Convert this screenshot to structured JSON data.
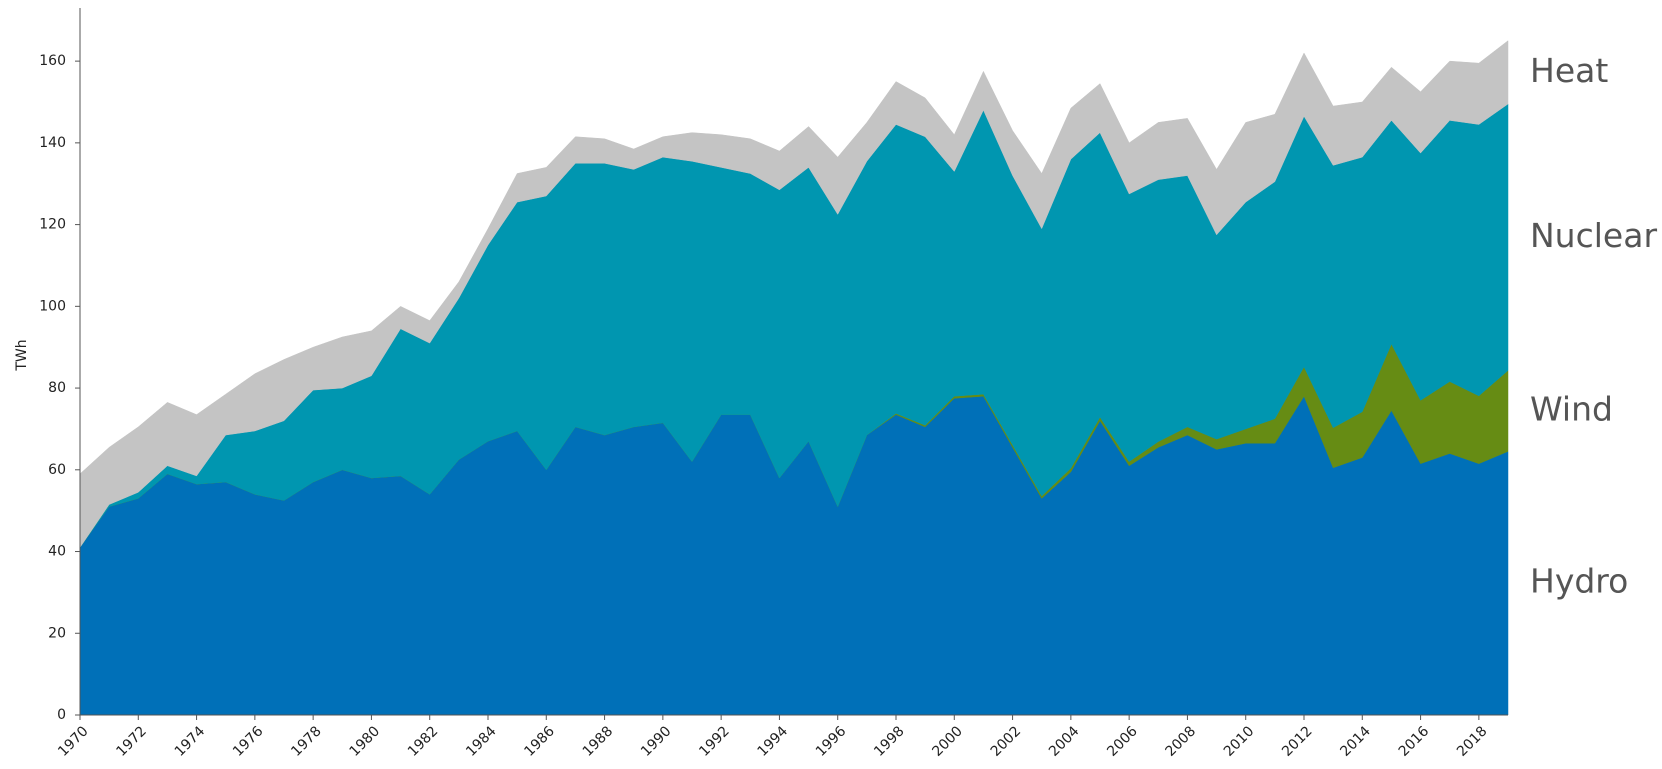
{
  "chart_data": {
    "type": "stacked-area",
    "y_label": "TWh",
    "x": [
      1970,
      1971,
      1972,
      1973,
      1974,
      1975,
      1976,
      1977,
      1978,
      1979,
      1980,
      1981,
      1982,
      1983,
      1984,
      1985,
      1986,
      1987,
      1988,
      1989,
      1990,
      1991,
      1992,
      1993,
      1994,
      1995,
      1996,
      1997,
      1998,
      1999,
      2000,
      2001,
      2002,
      2003,
      2004,
      2005,
      2006,
      2007,
      2008,
      2009,
      2010,
      2011,
      2012,
      2013,
      2014,
      2015,
      2016,
      2017,
      2018,
      2019
    ],
    "xlim": [
      1970,
      2019
    ],
    "xticks": [
      1970,
      1972,
      1974,
      1976,
      1978,
      1980,
      1982,
      1984,
      1986,
      1988,
      1990,
      1992,
      1994,
      1996,
      1998,
      2000,
      2002,
      2004,
      2006,
      2008,
      2010,
      2012,
      2014,
      2016,
      2018
    ],
    "ylim": [
      0,
      173
    ],
    "yticks": [
      0,
      20,
      40,
      60,
      80,
      100,
      120,
      140,
      160
    ],
    "grid": false,
    "series": [
      {
        "name": "Hydro",
        "color": "#0070b8",
        "values": [
          41,
          51,
          53,
          59,
          56.5,
          57,
          54,
          52.5,
          57,
          60,
          58,
          58.5,
          54,
          62.5,
          67,
          69.5,
          60,
          70.5,
          68.5,
          70.5,
          71.5,
          62,
          73.5,
          73.5,
          58,
          67,
          51,
          68.5,
          73.5,
          70.5,
          77.5,
          78,
          65.5,
          53,
          59.5,
          72,
          61,
          65.5,
          68.5,
          65,
          66.5,
          66.5,
          78,
          60.5,
          63,
          74.5,
          61.5,
          64,
          61.5,
          64.5
        ]
      },
      {
        "name": "Wind",
        "color": "#668c14",
        "values": [
          0,
          0,
          0,
          0,
          0,
          0,
          0,
          0,
          0,
          0,
          0,
          0,
          0,
          0,
          0,
          0,
          0,
          0,
          0,
          0,
          0,
          0,
          0,
          0,
          0,
          0,
          0,
          0,
          0.3,
          0.4,
          0.5,
          0.5,
          0.6,
          0.6,
          0.9,
          0.9,
          1,
          1.4,
          2,
          2.5,
          3.5,
          6,
          7.2,
          9.8,
          11.2,
          16.3,
          15.5,
          17.6,
          16.6,
          19.8
        ]
      },
      {
        "name": "Nuclear",
        "color": "#0096b0",
        "values": [
          0,
          0.5,
          1.5,
          2,
          2,
          11.5,
          15.5,
          19.5,
          22.5,
          20,
          25,
          36,
          37,
          39.5,
          48,
          56,
          67,
          64.5,
          66.5,
          63,
          65,
          73.5,
          60.5,
          59,
          70.5,
          67,
          71.5,
          67,
          70.7,
          70.6,
          55,
          69.5,
          65.9,
          65.4,
          75.6,
          69.6,
          65.5,
          64.1,
          61.5,
          50,
          55.5,
          58,
          61.3,
          64.2,
          62.3,
          54.7,
          60.5,
          63.9,
          66.4,
          65.2
        ]
      },
      {
        "name": "Heat",
        "color": "#c4c4c4",
        "values": [
          18,
          14,
          16,
          15.5,
          15,
          10,
          14,
          15,
          10.5,
          12.5,
          11,
          5.5,
          5.5,
          4,
          4,
          7,
          7,
          6.5,
          6,
          5,
          5,
          7,
          8,
          8.5,
          9.5,
          10,
          14,
          9.5,
          10.5,
          9.5,
          9,
          9.5,
          11,
          13.5,
          12.5,
          12,
          12.5,
          14,
          14,
          16,
          19.5,
          16.5,
          15.5,
          14.5,
          13.5,
          13,
          15,
          14.5,
          15,
          15.5
        ]
      }
    ]
  }
}
